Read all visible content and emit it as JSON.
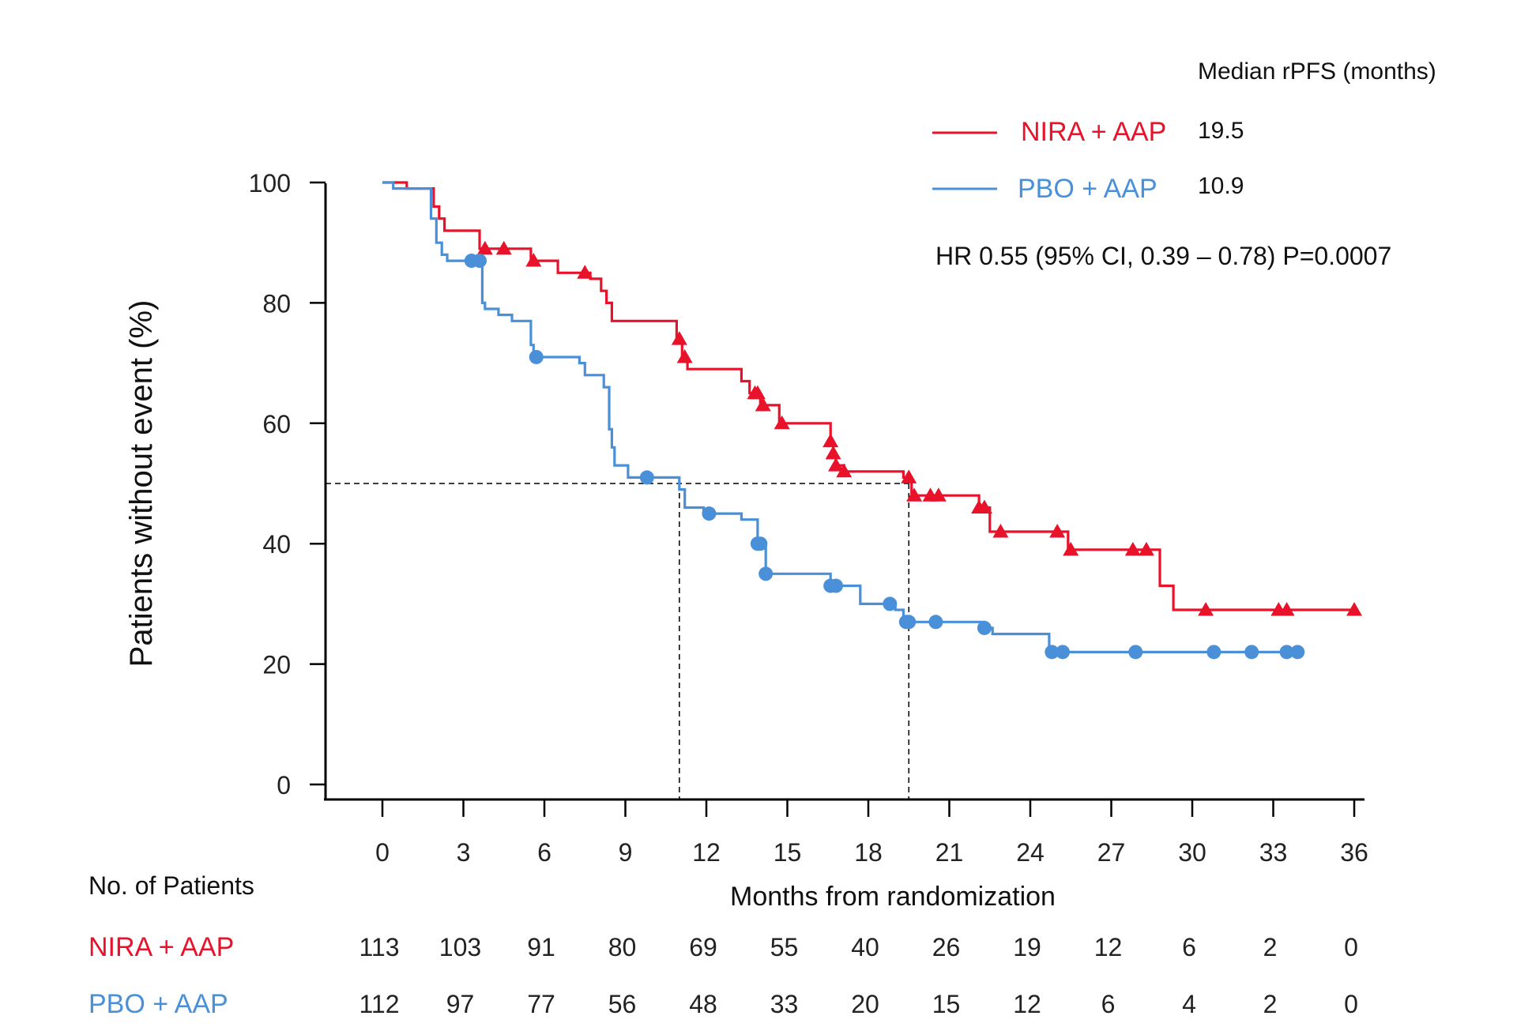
{
  "chart_data": {
    "type": "line",
    "ylabel": "Patients without event (%)",
    "xlabel": "Months from randomization",
    "xlim": [
      0,
      36
    ],
    "ylim": [
      0,
      100
    ],
    "xticks": [
      0,
      3,
      6,
      9,
      12,
      15,
      18,
      21,
      24,
      27,
      30,
      33,
      36
    ],
    "yticks": [
      0,
      20,
      40,
      60,
      80,
      100
    ],
    "legend_position": "top-right",
    "median_header": "Median rPFS (months)",
    "hr_text": "HR 0.55 (95% CI, 0.39 – 0.78) P=0.0007",
    "median_reference": {
      "y": 50,
      "x_values": [
        11.0,
        19.5
      ]
    },
    "series": [
      {
        "name": "NIRA + AAP",
        "median": "19.5",
        "color": "#e8132b",
        "marker": "triangle",
        "steps": [
          [
            0,
            100
          ],
          [
            0.9,
            100
          ],
          [
            0.9,
            99
          ],
          [
            1.9,
            99
          ],
          [
            1.9,
            96
          ],
          [
            2.1,
            96
          ],
          [
            2.1,
            94
          ],
          [
            2.3,
            94
          ],
          [
            2.3,
            92
          ],
          [
            3.6,
            92
          ],
          [
            3.6,
            89
          ],
          [
            5.5,
            89
          ],
          [
            5.5,
            87
          ],
          [
            6.5,
            87
          ],
          [
            6.5,
            85
          ],
          [
            7.7,
            85
          ],
          [
            7.7,
            84
          ],
          [
            8.1,
            84
          ],
          [
            8.1,
            82
          ],
          [
            8.3,
            82
          ],
          [
            8.3,
            80
          ],
          [
            8.5,
            80
          ],
          [
            8.5,
            77
          ],
          [
            10.9,
            77
          ],
          [
            10.9,
            74
          ],
          [
            11.1,
            74
          ],
          [
            11.1,
            71
          ],
          [
            11.3,
            71
          ],
          [
            11.3,
            69
          ],
          [
            13.3,
            69
          ],
          [
            13.3,
            67
          ],
          [
            13.6,
            67
          ],
          [
            13.6,
            65
          ],
          [
            14.0,
            65
          ],
          [
            14.0,
            63
          ],
          [
            14.7,
            63
          ],
          [
            14.7,
            60
          ],
          [
            16.6,
            60
          ],
          [
            16.6,
            57
          ],
          [
            16.7,
            57
          ],
          [
            16.7,
            55
          ],
          [
            16.8,
            55
          ],
          [
            16.8,
            53
          ],
          [
            17.1,
            53
          ],
          [
            17.1,
            52
          ],
          [
            19.3,
            52
          ],
          [
            19.3,
            51
          ],
          [
            19.6,
            51
          ],
          [
            19.6,
            48
          ],
          [
            22.1,
            48
          ],
          [
            22.1,
            46
          ],
          [
            22.5,
            46
          ],
          [
            22.5,
            42
          ],
          [
            25.4,
            42
          ],
          [
            25.4,
            39
          ],
          [
            28.8,
            39
          ],
          [
            28.8,
            33
          ],
          [
            29.3,
            33
          ],
          [
            29.3,
            29
          ],
          [
            36,
            29
          ]
        ],
        "censor_x": [
          3.8,
          4.5,
          5.6,
          7.5,
          11.0,
          11.2,
          13.8,
          13.9,
          14.1,
          14.8,
          16.6,
          16.7,
          16.8,
          17.1,
          19.5,
          19.7,
          20.3,
          20.6,
          22.1,
          22.3,
          22.9,
          25.0,
          25.5,
          27.8,
          28.3,
          30.5,
          33.2,
          33.5,
          36.0
        ]
      },
      {
        "name": "PBO + AAP",
        "median": "10.9",
        "color": "#4a90d9",
        "marker": "circle",
        "steps": [
          [
            0,
            100
          ],
          [
            0.4,
            100
          ],
          [
            0.4,
            99
          ],
          [
            1.8,
            99
          ],
          [
            1.8,
            94
          ],
          [
            2.0,
            94
          ],
          [
            2.0,
            90
          ],
          [
            2.2,
            90
          ],
          [
            2.2,
            88
          ],
          [
            2.4,
            88
          ],
          [
            2.4,
            87
          ],
          [
            3.7,
            87
          ],
          [
            3.7,
            80
          ],
          [
            3.8,
            80
          ],
          [
            3.8,
            79
          ],
          [
            4.3,
            79
          ],
          [
            4.3,
            78
          ],
          [
            4.8,
            78
          ],
          [
            4.8,
            77
          ],
          [
            5.5,
            77
          ],
          [
            5.5,
            73
          ],
          [
            5.6,
            73
          ],
          [
            5.6,
            71
          ],
          [
            7.3,
            71
          ],
          [
            7.3,
            70
          ],
          [
            7.5,
            70
          ],
          [
            7.5,
            68
          ],
          [
            8.2,
            68
          ],
          [
            8.2,
            66
          ],
          [
            8.4,
            66
          ],
          [
            8.4,
            59
          ],
          [
            8.5,
            59
          ],
          [
            8.5,
            56
          ],
          [
            8.6,
            56
          ],
          [
            8.6,
            53
          ],
          [
            9.1,
            53
          ],
          [
            9.1,
            51
          ],
          [
            11.0,
            51
          ],
          [
            11.0,
            49
          ],
          [
            11.2,
            49
          ],
          [
            11.2,
            46
          ],
          [
            11.9,
            46
          ],
          [
            11.9,
            45
          ],
          [
            13.3,
            45
          ],
          [
            13.3,
            44
          ],
          [
            13.9,
            44
          ],
          [
            13.9,
            40
          ],
          [
            14.2,
            40
          ],
          [
            14.2,
            35
          ],
          [
            16.6,
            35
          ],
          [
            16.6,
            33
          ],
          [
            17.7,
            33
          ],
          [
            17.7,
            30
          ],
          [
            19.0,
            30
          ],
          [
            19.0,
            29
          ],
          [
            19.3,
            29
          ],
          [
            19.3,
            27
          ],
          [
            22.3,
            27
          ],
          [
            22.3,
            26
          ],
          [
            22.6,
            26
          ],
          [
            22.6,
            25
          ],
          [
            24.7,
            25
          ],
          [
            24.7,
            22
          ],
          [
            34,
            22
          ]
        ],
        "censor_x": [
          3.3,
          3.6,
          5.7,
          9.8,
          12.1,
          13.9,
          13.9,
          14.0,
          14.2,
          16.6,
          16.8,
          18.8,
          19.4,
          19.5,
          20.5,
          22.3,
          24.8,
          25.2,
          27.9,
          30.8,
          32.2,
          33.5,
          33.9
        ]
      }
    ],
    "risk_table": {
      "title": "No. of Patients",
      "rows": [
        {
          "name": "NIRA + AAP",
          "color": "#e8132b",
          "values": [
            "113",
            "103",
            "91",
            "80",
            "69",
            "55",
            "40",
            "26",
            "19",
            "12",
            "6",
            "2",
            "0"
          ]
        },
        {
          "name": "PBO + AAP",
          "color": "#4a90d9",
          "values": [
            "112",
            "97",
            "77",
            "56",
            "48",
            "33",
            "20",
            "15",
            "12",
            "6",
            "4",
            "2",
            "0"
          ]
        }
      ]
    }
  }
}
